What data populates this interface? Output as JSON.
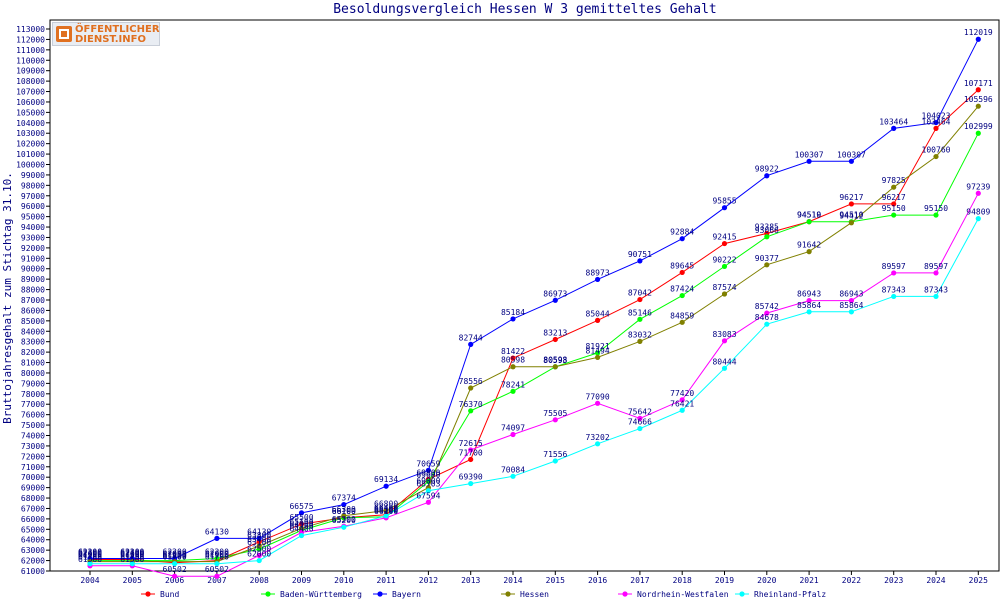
{
  "logo": {
    "line1": "ÖFFENTLICHER",
    "line2": "DIENST.INFO"
  },
  "chart_data": {
    "type": "line",
    "title": "Besoldungsvergleich Hessen W 3 gemitteltes Gehalt",
    "ylabel": "Bruttojahresgehalt zum Stichtag 31.10.",
    "xlabel": "",
    "x": [
      "2004",
      "2005",
      "2006",
      "2007",
      "2008",
      "2009",
      "2010",
      "2011",
      "2012",
      "2013",
      "2014",
      "2015",
      "2016",
      "2017",
      "2018",
      "2019",
      "2020",
      "2021",
      "2022",
      "2023",
      "2024",
      "2025"
    ],
    "ylim": [
      61000,
      113000
    ],
    "ytick_step": 1000,
    "grid": false,
    "legend_position": "bottom",
    "series": [
      {
        "name": "Bund",
        "color": "#ff0000",
        "values": [
          62100,
          62100,
          61800,
          62000,
          63800,
          65500,
          66100,
          66400,
          69800,
          71700,
          81422,
          83213,
          85044,
          87042,
          89645,
          92415,
          93385,
          94519,
          96217,
          96217,
          103464,
          107171
        ],
        "labels": [
          "62100",
          "62100",
          "61800",
          "62000",
          "63800",
          "65500",
          "66100",
          "66400",
          "69800",
          "71700",
          "81422",
          "83213",
          "85044",
          "87042",
          "89645",
          "92415",
          "93385",
          "94519",
          "96217",
          "96217",
          "103464",
          "107171"
        ]
      },
      {
        "name": "Baden-Württemberg",
        "color": "#00ff00",
        "values": [
          62000,
          62000,
          62000,
          62200,
          63100,
          64900,
          66100,
          66200,
          69600,
          76370,
          78241,
          80593,
          81921,
          85146,
          87424,
          90222,
          93066,
          94510,
          94510,
          95150,
          95150,
          102999
        ],
        "labels": [
          "62000",
          "62000",
          "62000",
          "62200",
          "63100",
          "64900",
          "66100",
          "66200",
          "69600",
          "76370",
          "78241",
          "80593",
          "81921",
          "85146",
          "87424",
          "90222",
          "93066",
          "94510",
          "94510",
          "95150",
          "95150",
          "102999"
        ]
      },
      {
        "name": "Bayern",
        "color": "#0000ff",
        "values": [
          62200,
          62200,
          62200,
          64130,
          64130,
          66575,
          67374,
          69134,
          70659,
          82744,
          85184,
          86973,
          88973,
          90751,
          92884,
          95855,
          98922,
          100307,
          100307,
          103464,
          104023,
          112019
        ],
        "labels": [
          "62200",
          "62200",
          "62200",
          "64130",
          "64130",
          "66575",
          "67374",
          "69134",
          "70659",
          "82744",
          "85184",
          "86973",
          "88973",
          "90751",
          "92884",
          "95855",
          "98922",
          "100307",
          "100307",
          "103464",
          "104023",
          "112019"
        ]
      },
      {
        "name": "Hessen",
        "color": "#808000",
        "values": [
          61900,
          61900,
          61900,
          61900,
          63400,
          65100,
          66300,
          66800,
          69000,
          78556,
          80598,
          80598,
          81494,
          83032,
          84859,
          87574,
          90377,
          91642,
          94412,
          97825,
          100760,
          105596
        ],
        "labels": [
          "61900",
          "61900",
          "61900",
          "61900",
          "63400",
          "65100",
          "66300",
          "66800",
          "69000",
          "78556",
          "80598",
          "80598",
          "81494",
          "83032",
          "84859",
          "87574",
          "90377",
          "91642",
          "94412",
          "97825",
          "100760",
          "105596"
        ]
      },
      {
        "name": "Nordrhein-Westfalen",
        "color": "#ff00ff",
        "values": [
          61500,
          61500,
          60502,
          60502,
          62500,
          64700,
          65300,
          66100,
          67594,
          72615,
          74097,
          75505,
          77090,
          75642,
          77420,
          83083,
          85742,
          86943,
          86943,
          89597,
          89597,
          97239
        ],
        "labels": [
          "61500",
          "61500",
          "60502",
          "60502",
          "62500",
          "64700",
          "65300",
          "66100",
          "67594",
          "72615",
          "74097",
          "75505",
          "77090",
          "75642",
          "77420",
          "83083",
          "85742",
          "86943",
          "86943",
          "89597",
          "89597",
          "97239"
        ]
      },
      {
        "name": "Rheinland-Pfalz",
        "color": "#00ffff",
        "values": [
          61700,
          61700,
          61700,
          61700,
          62000,
          64400,
          65200,
          66300,
          68703,
          69390,
          70084,
          71556,
          73202,
          74666,
          76421,
          80444,
          84678,
          85864,
          85864,
          87343,
          87343,
          94809
        ],
        "labels": [
          "61700",
          "61700",
          "61700",
          "61700",
          "62000",
          "64400",
          "65200",
          "66300",
          "68703",
          "69390",
          "70084",
          "71556",
          "73202",
          "74666",
          "76421",
          "80444",
          "84678",
          "85864",
          "85864",
          "87343",
          "87343",
          "94809"
        ]
      }
    ]
  }
}
